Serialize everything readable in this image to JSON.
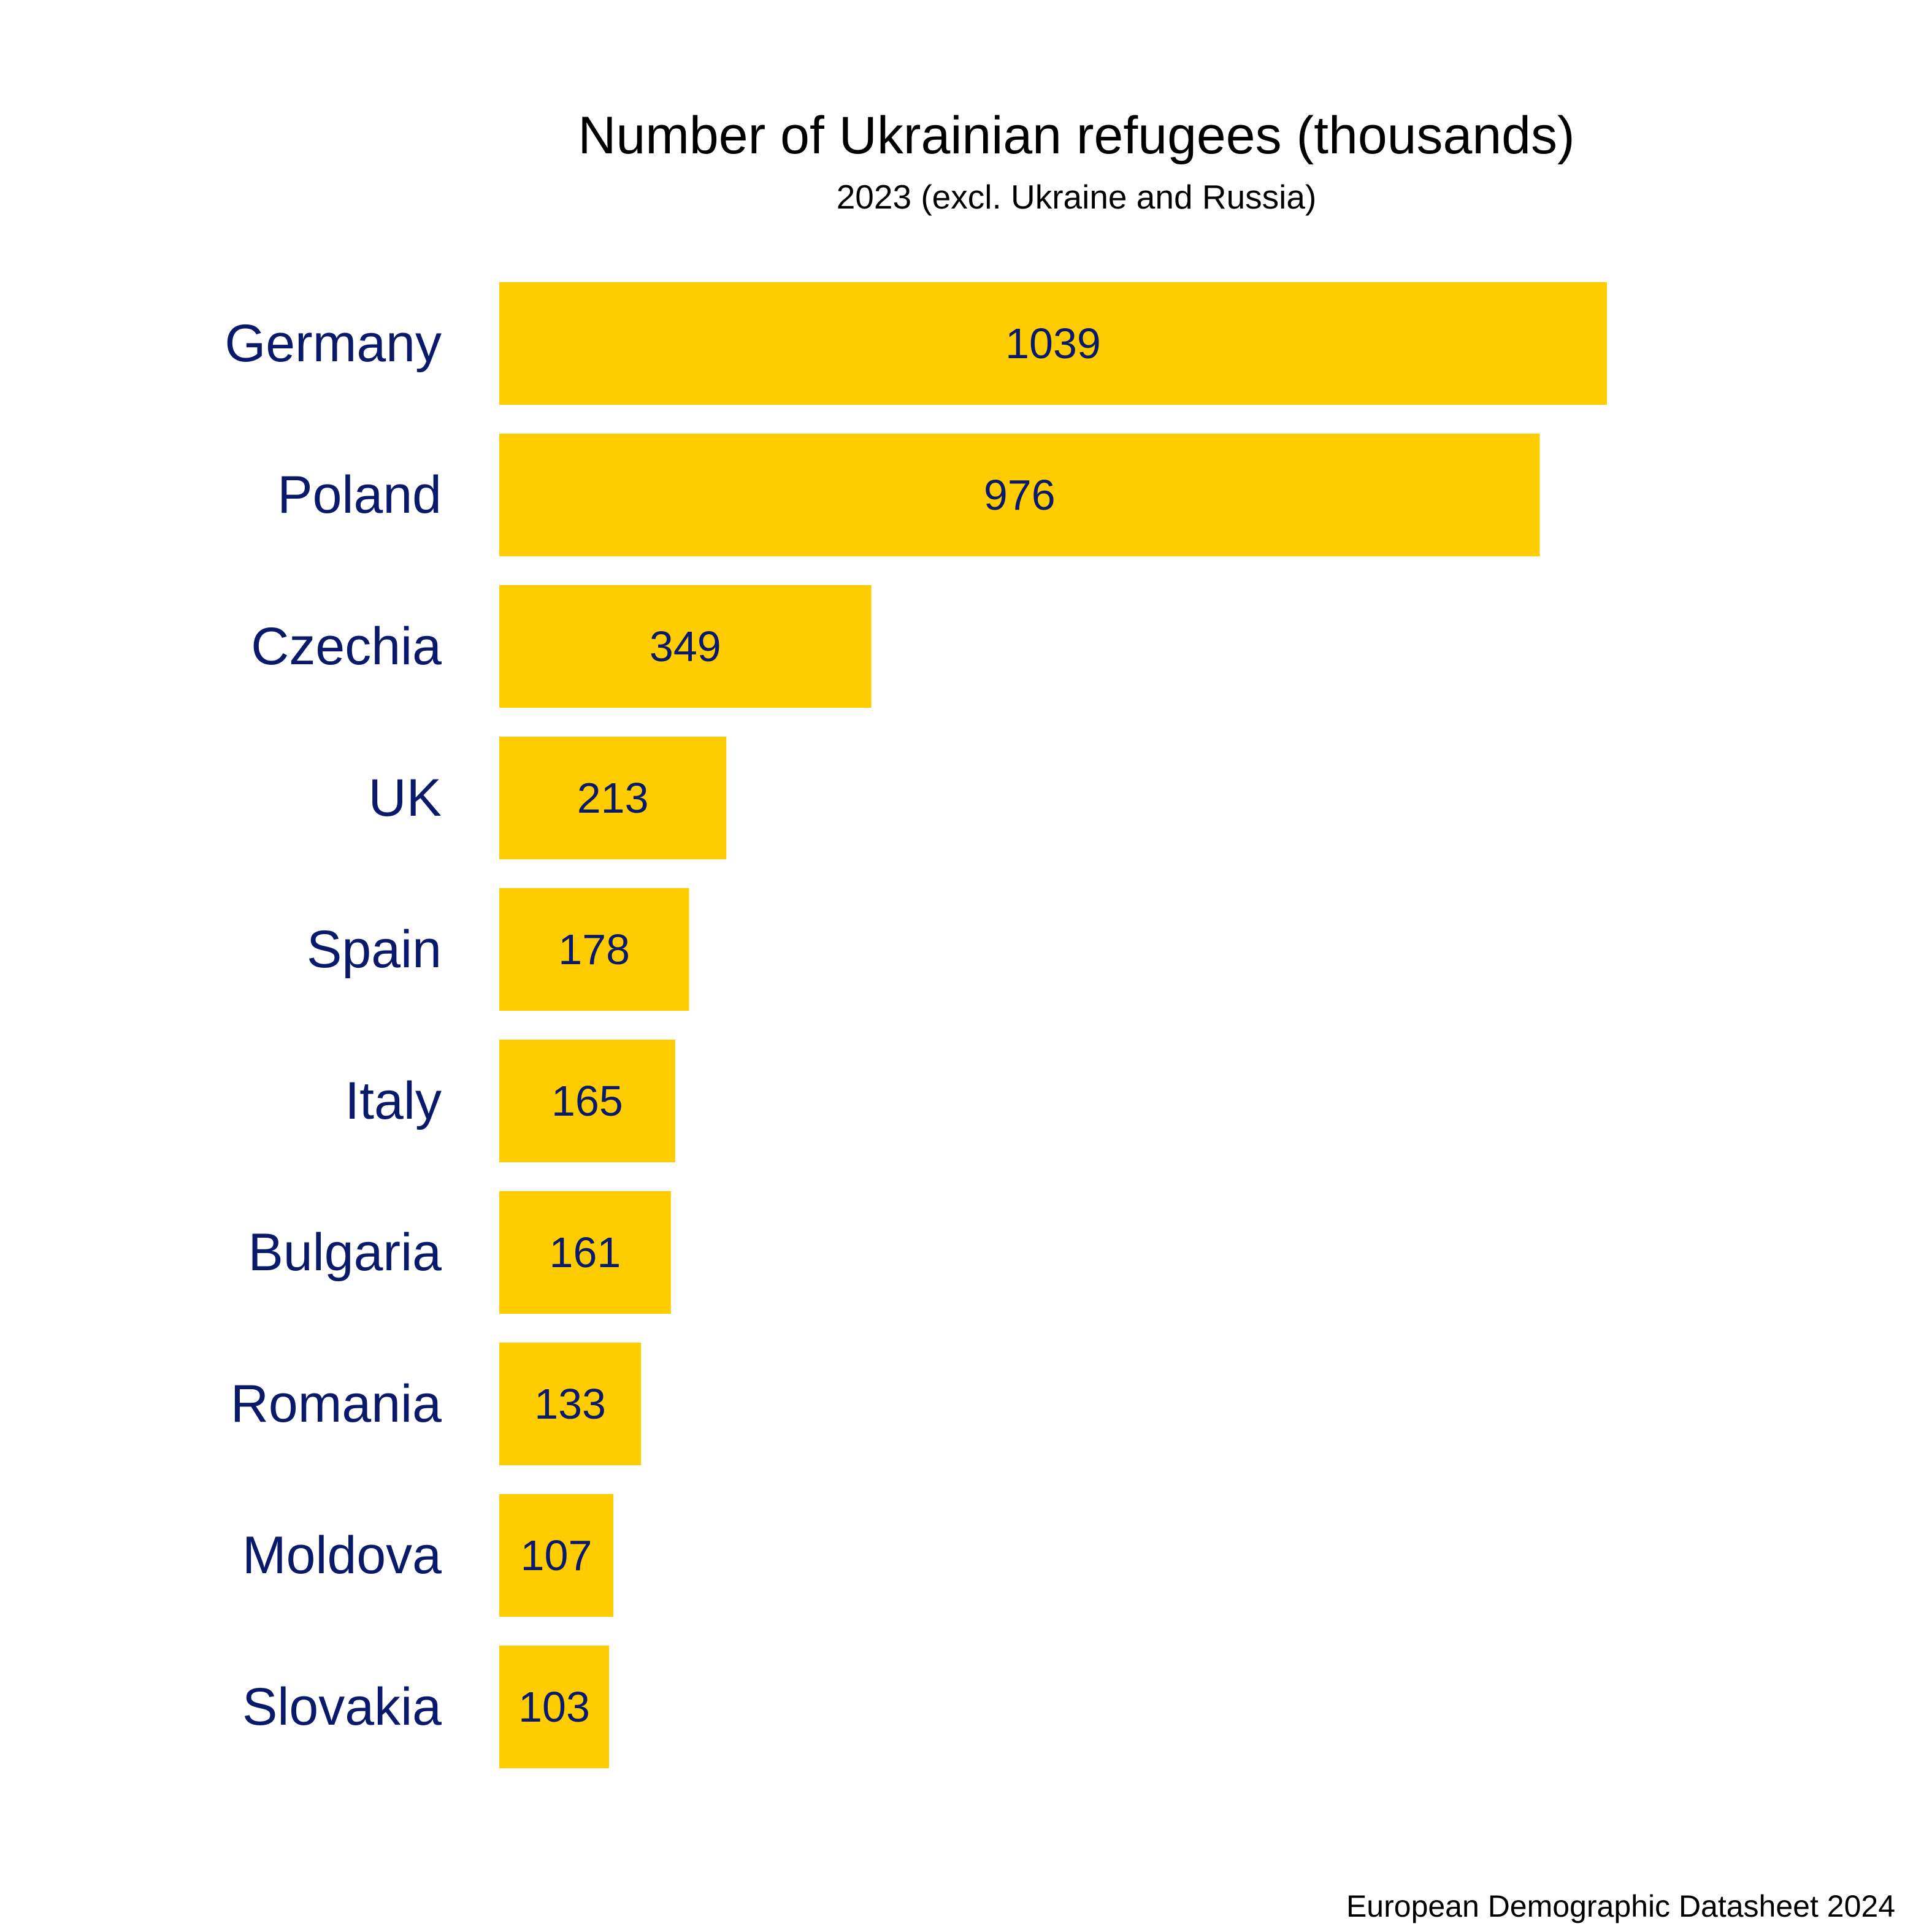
{
  "chart_data": {
    "type": "bar",
    "orientation": "horizontal",
    "title": "Number of Ukrainian refugees (thousands)",
    "subtitle": "2023 (excl. Ukraine and Russia)",
    "categories": [
      "Germany",
      "Poland",
      "Czechia",
      "UK",
      "Spain",
      "Italy",
      "Bulgaria",
      "Romania",
      "Moldova",
      "Slovakia"
    ],
    "values": [
      1039,
      976,
      349,
      213,
      178,
      165,
      161,
      133,
      107,
      103
    ],
    "xlim": [
      0,
      1039
    ],
    "grid": false,
    "legend": "none",
    "colors": {
      "bar": "#ffcc00",
      "label": "#0a1a6b",
      "title": "#000000"
    }
  },
  "source": "European Demographic Datasheet 2024"
}
